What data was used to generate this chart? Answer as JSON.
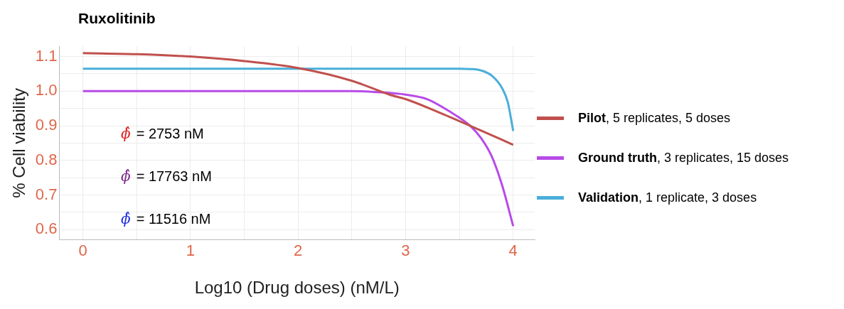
{
  "chart_data": {
    "type": "line",
    "title": "Ruxolitinib",
    "xlabel": "Log10 (Drug doses) (nM/L)",
    "ylabel": "% Cell viability",
    "annotations": [
      "ϕ̂ = 2753 nM",
      "ϕ̂ = 17763 nM",
      "ϕ̂ = 11516 nM"
    ],
    "xlim": [
      -0.22,
      4.2
    ],
    "xticks": [
      0,
      {
        "value": 0.5,
        "label": null
      },
      1,
      {
        "value": 1.5,
        "label": null
      },
      2,
      {
        "value": 2.5,
        "label": null
      },
      3,
      {
        "value": 3.5,
        "label": null
      },
      4
    ],
    "ylim": [
      0.57,
      1.13
    ],
    "yticks": [
      {
        "value": 0.6,
        "label": "0.6"
      },
      {
        "value": 0.65,
        "label": null
      },
      {
        "value": 0.7,
        "label": "0.7"
      },
      {
        "value": 0.75,
        "label": null
      },
      {
        "value": 0.8,
        "label": "0.8"
      },
      {
        "value": 0.85,
        "label": null
      },
      {
        "value": 0.9,
        "label": "0.9"
      },
      {
        "value": 0.95,
        "label": null
      },
      {
        "value": 1.0,
        "label": "1.0"
      },
      {
        "value": 1.05,
        "label": null
      },
      {
        "value": 1.1,
        "label": "1.1"
      }
    ],
    "grid": true,
    "legend": "right",
    "marker": "none",
    "line_style": "solid",
    "series": [
      {
        "name": "Pilot, 5 replicates, 5 doses",
        "color": "#c0504d",
        "x": [
          0,
          0.5,
          1,
          1.5,
          2,
          2.5,
          2.85,
          3,
          3.3,
          3.6,
          4
        ],
        "values": [
          1.11,
          1.107,
          1.1,
          1.087,
          1.067,
          1.03,
          0.99,
          0.977,
          0.94,
          0.9,
          0.845
        ]
      },
      {
        "name": "Ground truth, 3 replicates, 15 doses",
        "color": "#b84be8",
        "x": [
          0,
          1,
          2,
          2.5,
          2.8,
          3,
          3.2,
          3.4,
          3.6,
          3.7,
          3.8,
          3.9,
          4
        ],
        "values": [
          1.0,
          1.0,
          1.0,
          1.0,
          0.996,
          0.99,
          0.977,
          0.943,
          0.9,
          0.865,
          0.812,
          0.725,
          0.61
        ]
      },
      {
        "name": "Validation, 1 replicate, 3 doses",
        "color": "#4aaed9",
        "x": [
          0,
          1,
          2,
          3,
          3.5,
          3.6,
          3.7,
          3.8,
          3.9,
          3.95,
          4
        ],
        "values": [
          1.065,
          1.065,
          1.065,
          1.065,
          1.065,
          1.064,
          1.06,
          1.045,
          1.007,
          0.968,
          0.885
        ]
      }
    ]
  }
}
